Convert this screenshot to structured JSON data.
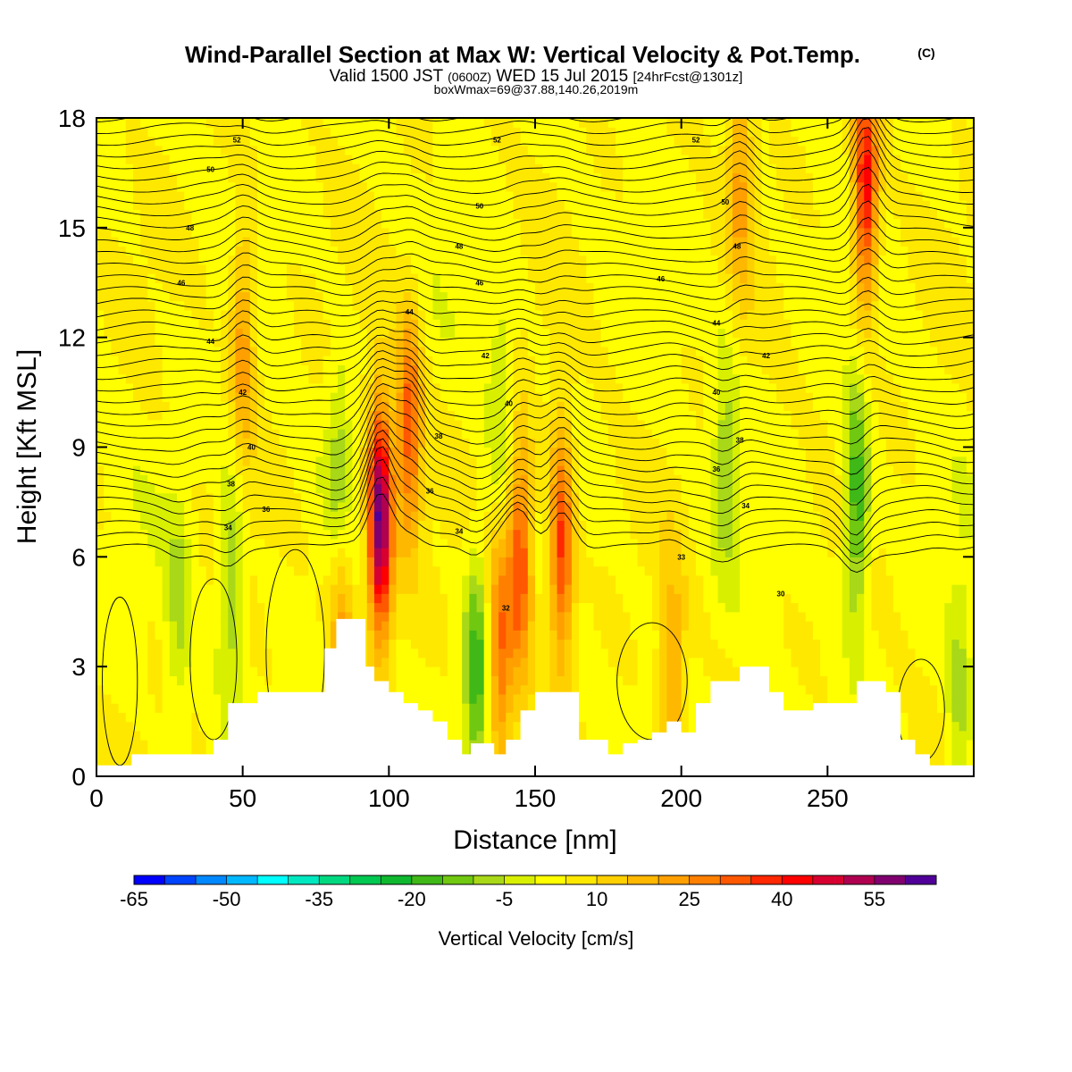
{
  "chart_data": {
    "type": "heatmap",
    "title": "Wind-Parallel Section at Max W: Vertical Velocity & Pot.Temp.",
    "title_mark": "(C)",
    "subtitle": {
      "prefix": "Valid 1500 JST",
      "utc": "(0600Z)",
      "date": "WED 15 Jul 2015",
      "forecast": "[24hrFcst@1301z]"
    },
    "box_info": "boxWmax=69@37.88,140.26,2019m",
    "xlabel": "Distance [nm]",
    "ylabel": "Height [Kft MSL]",
    "xlim": [
      0,
      300
    ],
    "ylim": [
      0,
      18
    ],
    "x_ticks": [
      0,
      50,
      100,
      150,
      200,
      250
    ],
    "y_ticks": [
      0,
      3,
      6,
      9,
      12,
      15,
      18
    ],
    "colorbar": {
      "label": "Vertical Velocity [cm/s]",
      "min": -65,
      "max": 60,
      "step": 5,
      "tick_labels": [
        -65,
        -50,
        -35,
        -20,
        -5,
        10,
        25,
        40,
        55
      ],
      "colors": [
        "#0000ff",
        "#0044ff",
        "#0088ff",
        "#00b8ff",
        "#00ffff",
        "#00e8c0",
        "#00d880",
        "#00c850",
        "#10b830",
        "#40b818",
        "#70c810",
        "#a8d818",
        "#d8f000",
        "#ffff00",
        "#ffe800",
        "#ffd000",
        "#ffb800",
        "#ffa000",
        "#ff8000",
        "#ff5800",
        "#ff2800",
        "#ff0000",
        "#d80030",
        "#b00050",
        "#800070",
        "#500098"
      ]
    },
    "updrafts": [
      {
        "x": 97,
        "z": 7.0,
        "w": 58
      },
      {
        "x": 107,
        "z": 9.5,
        "w": 30
      },
      {
        "x": 145,
        "z": 6.0,
        "w": 32
      },
      {
        "x": 159,
        "z": 6.3,
        "w": 34
      },
      {
        "x": 138,
        "z": 3.5,
        "w": 26
      },
      {
        "x": 263,
        "z": 16.0,
        "w": 40
      },
      {
        "x": 50,
        "z": 12.0,
        "w": 20
      },
      {
        "x": 220,
        "z": 16.5,
        "w": 18
      },
      {
        "x": 84,
        "z": 4.2,
        "w": 18
      },
      {
        "x": 197,
        "z": 2.5,
        "w": 18
      }
    ],
    "downdrafts": [
      {
        "x": 260,
        "z": 7.5,
        "w": -25
      },
      {
        "x": 130,
        "z": 3.0,
        "w": -22
      },
      {
        "x": 46,
        "z": 5.5,
        "w": -14
      },
      {
        "x": 83,
        "z": 8.5,
        "w": -12
      },
      {
        "x": 215,
        "z": 8.8,
        "w": -12
      },
      {
        "x": 28,
        "z": 4.5,
        "w": -10
      },
      {
        "x": 295,
        "z": 2.0,
        "w": -12
      },
      {
        "x": 138,
        "z": 10.0,
        "w": -10
      }
    ],
    "terrain": {
      "x": [
        0,
        12,
        18,
        25,
        32,
        40,
        45,
        50,
        55,
        60,
        70,
        78,
        82,
        88,
        92,
        95,
        100,
        105,
        110,
        115,
        120,
        125,
        128,
        133,
        136,
        140,
        145,
        150,
        155,
        160,
        165,
        170,
        175,
        180,
        185,
        190,
        195,
        200,
        205,
        210,
        215,
        220,
        225,
        230,
        235,
        240,
        245,
        250,
        255,
        260,
        265,
        270,
        275,
        280,
        285,
        290,
        295,
        300
      ],
      "z": [
        0.3,
        0.6,
        0.6,
        0.6,
        0.6,
        1.0,
        2.0,
        2.0,
        2.3,
        2.3,
        2.3,
        3.5,
        4.3,
        4.3,
        3.0,
        2.6,
        2.3,
        2.0,
        1.8,
        1.5,
        1.0,
        0.6,
        0.9,
        0.9,
        0.6,
        1.0,
        1.8,
        2.3,
        2.3,
        2.3,
        1.0,
        1.0,
        0.6,
        0.9,
        1.0,
        1.2,
        1.5,
        1.2,
        2.0,
        2.6,
        2.6,
        3.0,
        3.0,
        2.3,
        1.8,
        1.8,
        2.0,
        2.0,
        2.0,
        2.6,
        2.6,
        2.3,
        1.0,
        0.6,
        0.3,
        0.3,
        0.3,
        0.3
      ]
    },
    "theta_labels": [
      {
        "x": 48,
        "z": 17.4,
        "text": "52"
      },
      {
        "x": 39,
        "z": 16.6,
        "text": "50"
      },
      {
        "x": 32,
        "z": 15.0,
        "text": "48"
      },
      {
        "x": 29,
        "z": 13.5,
        "text": "46"
      },
      {
        "x": 39,
        "z": 11.9,
        "text": "44"
      },
      {
        "x": 50,
        "z": 10.5,
        "text": "42"
      },
      {
        "x": 53,
        "z": 9.0,
        "text": "40"
      },
      {
        "x": 46,
        "z": 8.0,
        "text": "38"
      },
      {
        "x": 58,
        "z": 7.3,
        "text": "36"
      },
      {
        "x": 45,
        "z": 6.8,
        "text": "34"
      },
      {
        "x": 137,
        "z": 17.4,
        "text": "52"
      },
      {
        "x": 131,
        "z": 15.6,
        "text": "50"
      },
      {
        "x": 124,
        "z": 14.5,
        "text": "48"
      },
      {
        "x": 131,
        "z": 13.5,
        "text": "46"
      },
      {
        "x": 107,
        "z": 12.7,
        "text": "44"
      },
      {
        "x": 133,
        "z": 11.5,
        "text": "42"
      },
      {
        "x": 141,
        "z": 10.2,
        "text": "40"
      },
      {
        "x": 117,
        "z": 9.3,
        "text": "38"
      },
      {
        "x": 114,
        "z": 7.8,
        "text": "36"
      },
      {
        "x": 124,
        "z": 6.7,
        "text": "34"
      },
      {
        "x": 140,
        "z": 4.6,
        "text": "32"
      },
      {
        "x": 205,
        "z": 17.4,
        "text": "52"
      },
      {
        "x": 215,
        "z": 15.7,
        "text": "50"
      },
      {
        "x": 219,
        "z": 14.5,
        "text": "48"
      },
      {
        "x": 193,
        "z": 13.6,
        "text": "46"
      },
      {
        "x": 212,
        "z": 12.4,
        "text": "44"
      },
      {
        "x": 229,
        "z": 11.5,
        "text": "42"
      },
      {
        "x": 212,
        "z": 10.5,
        "text": "40"
      },
      {
        "x": 220,
        "z": 9.2,
        "text": "38"
      },
      {
        "x": 212,
        "z": 8.4,
        "text": "36"
      },
      {
        "x": 222,
        "z": 7.4,
        "text": "34"
      },
      {
        "x": 200,
        "z": 6.0,
        "text": "33"
      },
      {
        "x": 234,
        "z": 5.0,
        "text": "30"
      }
    ]
  }
}
